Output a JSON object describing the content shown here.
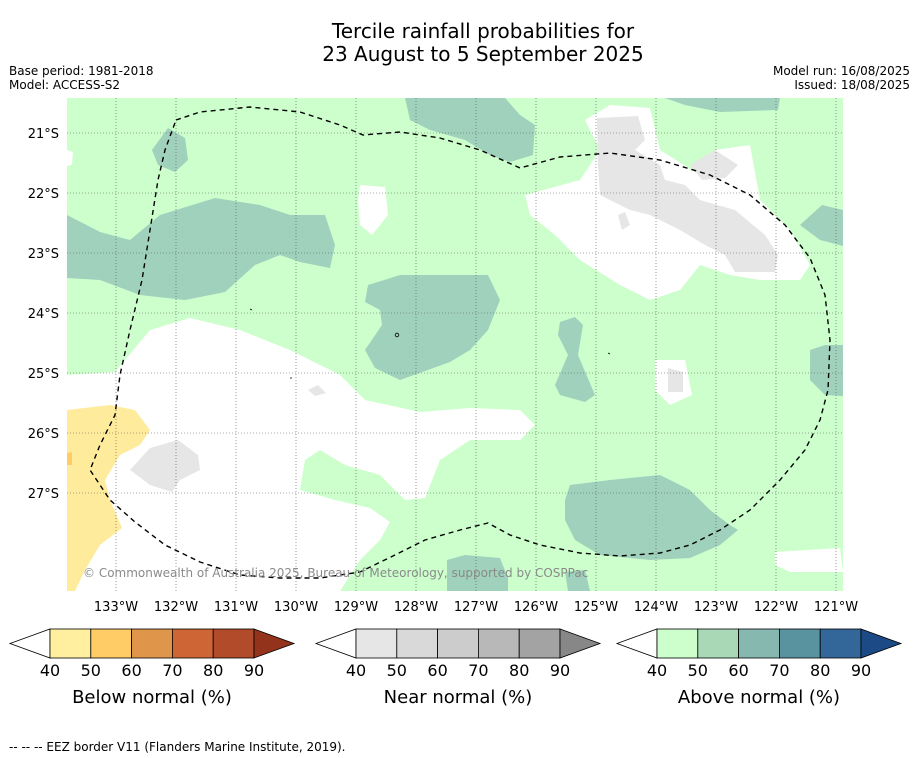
{
  "title": {
    "line1": "Tercile rainfall probabilities for",
    "line2": "23 August to 5 September 2025"
  },
  "meta_left": {
    "base_period": "Base period: 1981-2018",
    "model": "Model: ACCESS-S2"
  },
  "meta_right": {
    "model_run": "Model run: 16/08/2025",
    "issued": "Issued: 18/08/2025"
  },
  "map": {
    "lat_labels": [
      "21°S",
      "22°S",
      "23°S",
      "24°S",
      "25°S",
      "26°S",
      "27°S"
    ],
    "lat_values": [
      -21,
      -22,
      -23,
      -24,
      -25,
      -26,
      -27
    ],
    "lon_labels": [
      "133°W",
      "132°W",
      "131°W",
      "130°W",
      "129°W",
      "128°W",
      "127°W",
      "126°W",
      "125°W",
      "124°W",
      "123°W",
      "122°W",
      "121°W"
    ],
    "lon_values": [
      -133,
      -132,
      -131,
      -130,
      -129,
      -128,
      -127,
      -126,
      -125,
      -124,
      -123,
      -122,
      -121
    ],
    "copyright": "© Commonwealth of Australia 2025, Bureau of Meteorology, supported by COSPPac",
    "colors": {
      "land_bg": "#ffffff",
      "above_40": "#ccffcc",
      "above_60": "#9fd1bc",
      "near_40": "#e6e6e6",
      "below_40": "#ffeb9c",
      "below_50": "#ffcc66"
    }
  },
  "colorbars": [
    {
      "label": "Below normal (%)",
      "ticks": [
        "40",
        "50",
        "60",
        "70",
        "80",
        "90"
      ],
      "colors": [
        "#ffef9e",
        "#ffcc66",
        "#e0964a",
        "#cd6634",
        "#b24b2a",
        "#93331c"
      ]
    },
    {
      "label": "Near normal (%)",
      "ticks": [
        "40",
        "50",
        "60",
        "70",
        "80",
        "90"
      ],
      "colors": [
        "#e6e6e6",
        "#d9d9d9",
        "#cccccc",
        "#b8b8b8",
        "#a3a3a3",
        "#878787"
      ]
    },
    {
      "label": "Above normal (%)",
      "ticks": [
        "40",
        "50",
        "60",
        "70",
        "80",
        "90"
      ],
      "colors": [
        "#ccffcc",
        "#a8d8b6",
        "#86b8b0",
        "#5a93a0",
        "#336799",
        "#1b4a86"
      ]
    }
  ],
  "footer": "--  --  -- EEZ border V11 (Flanders Marine Institute, 2019)."
}
